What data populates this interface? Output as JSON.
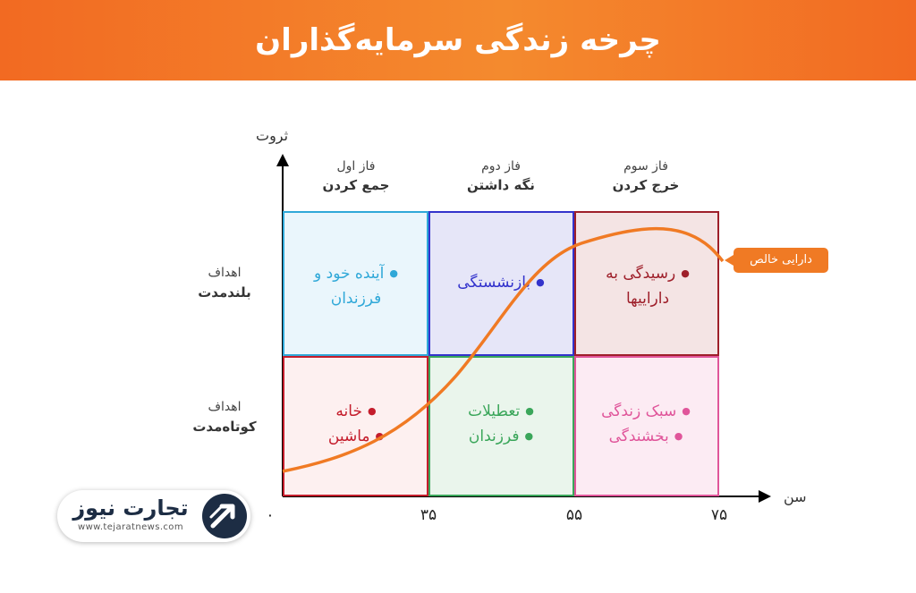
{
  "banner": {
    "title": "چرخه زندگی سرمایه‌گذاران"
  },
  "axes": {
    "y_label": "ثروت",
    "x_label": "سن",
    "x_ticks": [
      "۰",
      "۳۵",
      "۵۵",
      "۷۵"
    ]
  },
  "phases": [
    {
      "name": "فاز اول",
      "action": "جمع کردن"
    },
    {
      "name": "فاز دوم",
      "action": "نگه داشتن"
    },
    {
      "name": "فاز سوم",
      "action": "خرج کردن"
    }
  ],
  "goal_rows": [
    {
      "label": "اهداف",
      "term": "بلندمدت"
    },
    {
      "label": "اهداف",
      "term": "کوتاه‌مدت"
    }
  ],
  "cells": {
    "long_p1": {
      "items": [
        "آینده خود و فرزندان"
      ],
      "color": "#2fa8d8",
      "bg": "#eaf6fc"
    },
    "long_p2": {
      "items": [
        "بازنشستگی"
      ],
      "color": "#3333cc",
      "bg": "#e6e6f8"
    },
    "long_p3": {
      "items": [
        "رسیدگی به داراییها"
      ],
      "color": "#9e1f2a",
      "bg": "#f4e4e4"
    },
    "short_p1": {
      "items": [
        "خانه",
        "ماشین"
      ],
      "color": "#c41d2c",
      "bg": "#fdf0f0"
    },
    "short_p2": {
      "items": [
        "تعطیلات",
        "فرزندان"
      ],
      "color": "#3aa65a",
      "bg": "#eaf5ec"
    },
    "short_p3": {
      "items": [
        "سبک زندگی",
        "بخشندگی"
      ],
      "color": "#e0559a",
      "bg": "#fcebf3"
    }
  },
  "curve": {
    "label": "دارایی خالص",
    "color": "#f07a24"
  },
  "logo": {
    "name": "تجارت نیوز",
    "url": "www.tejaratnews.com"
  }
}
